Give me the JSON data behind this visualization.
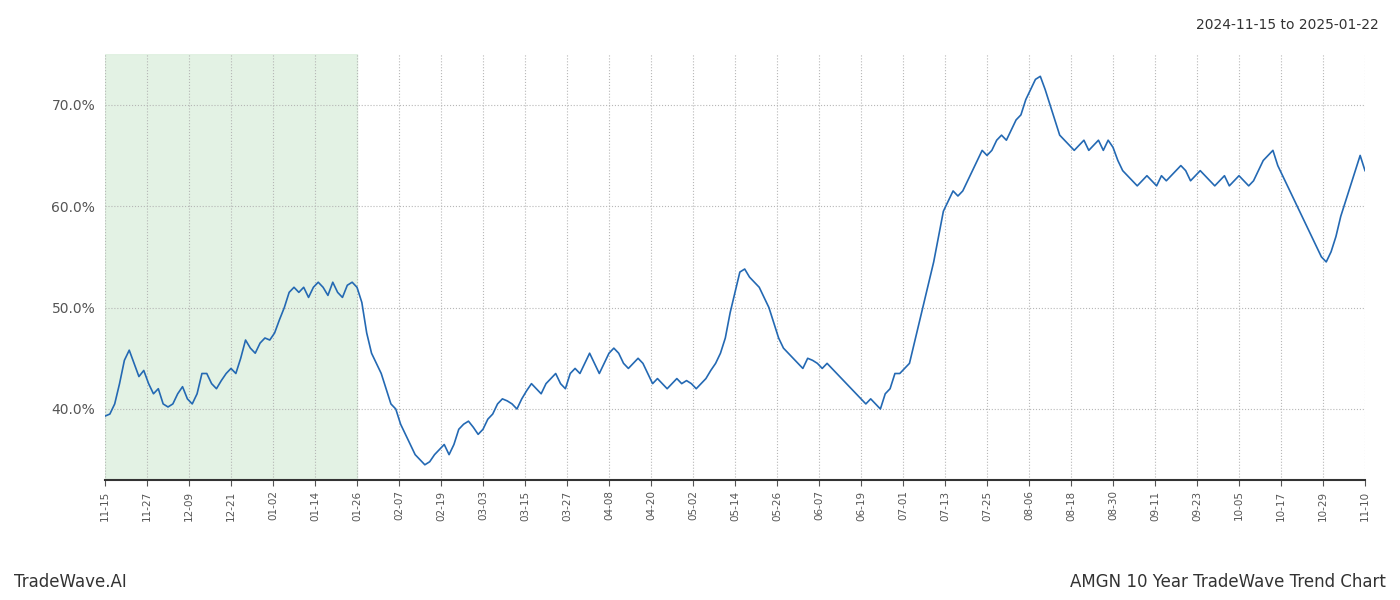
{
  "title_top_right": "2024-11-15 to 2025-01-22",
  "title_bottom_left": "TradeWave.AI",
  "title_bottom_right": "AMGN 10 Year TradeWave Trend Chart",
  "line_color": "#2469b3",
  "line_width": 1.2,
  "background_color": "#ffffff",
  "highlight_color": "#dff0e0",
  "highlight_alpha": 0.85,
  "ylim": [
    33,
    75
  ],
  "yticks": [
    40.0,
    50.0,
    60.0,
    70.0
  ],
  "ytick_labels": [
    "40.0%",
    "50.0%",
    "60.0%",
    "70.0%"
  ],
  "x_labels": [
    "11-15",
    "11-27",
    "12-09",
    "12-21",
    "01-02",
    "01-14",
    "01-26",
    "02-07",
    "02-19",
    "03-03",
    "03-15",
    "03-27",
    "04-08",
    "04-20",
    "05-02",
    "05-14",
    "05-26",
    "06-07",
    "06-19",
    "07-01",
    "07-13",
    "07-25",
    "08-06",
    "08-18",
    "08-30",
    "09-11",
    "09-23",
    "10-05",
    "10-17",
    "10-29",
    "11-10"
  ],
  "highlight_x_start_label": "11-15",
  "highlight_x_end_label": "01-26",
  "data": [
    [
      0,
      39.3
    ],
    [
      1,
      39.5
    ],
    [
      2,
      40.5
    ],
    [
      3,
      42.5
    ],
    [
      4,
      44.8
    ],
    [
      5,
      45.8
    ],
    [
      6,
      44.5
    ],
    [
      7,
      43.2
    ],
    [
      8,
      43.8
    ],
    [
      9,
      42.5
    ],
    [
      10,
      41.5
    ],
    [
      11,
      42.0
    ],
    [
      12,
      40.5
    ],
    [
      13,
      40.2
    ],
    [
      14,
      40.5
    ],
    [
      15,
      41.5
    ],
    [
      16,
      42.2
    ],
    [
      17,
      41.0
    ],
    [
      18,
      40.5
    ],
    [
      19,
      41.5
    ],
    [
      20,
      43.5
    ],
    [
      21,
      43.5
    ],
    [
      22,
      42.5
    ],
    [
      23,
      42.0
    ],
    [
      24,
      42.8
    ],
    [
      25,
      43.5
    ],
    [
      26,
      44.0
    ],
    [
      27,
      43.5
    ],
    [
      28,
      45.0
    ],
    [
      29,
      46.8
    ],
    [
      30,
      46.0
    ],
    [
      31,
      45.5
    ],
    [
      32,
      46.5
    ],
    [
      33,
      47.0
    ],
    [
      34,
      46.8
    ],
    [
      35,
      47.5
    ],
    [
      36,
      48.8
    ],
    [
      37,
      50.0
    ],
    [
      38,
      51.5
    ],
    [
      39,
      52.0
    ],
    [
      40,
      51.5
    ],
    [
      41,
      52.0
    ],
    [
      42,
      51.0
    ],
    [
      43,
      52.0
    ],
    [
      44,
      52.5
    ],
    [
      45,
      52.0
    ],
    [
      46,
      51.2
    ],
    [
      47,
      52.5
    ],
    [
      48,
      51.5
    ],
    [
      49,
      51.0
    ],
    [
      50,
      52.2
    ],
    [
      51,
      52.5
    ],
    [
      52,
      52.0
    ],
    [
      53,
      50.5
    ],
    [
      54,
      47.5
    ],
    [
      55,
      45.5
    ],
    [
      56,
      44.5
    ],
    [
      57,
      43.5
    ],
    [
      58,
      42.0
    ],
    [
      59,
      40.5
    ],
    [
      60,
      40.0
    ],
    [
      61,
      38.5
    ],
    [
      62,
      37.5
    ],
    [
      63,
      36.5
    ],
    [
      64,
      35.5
    ],
    [
      65,
      35.0
    ],
    [
      66,
      34.5
    ],
    [
      67,
      34.8
    ],
    [
      68,
      35.5
    ],
    [
      69,
      36.0
    ],
    [
      70,
      36.5
    ],
    [
      71,
      35.5
    ],
    [
      72,
      36.5
    ],
    [
      73,
      38.0
    ],
    [
      74,
      38.5
    ],
    [
      75,
      38.8
    ],
    [
      76,
      38.2
    ],
    [
      77,
      37.5
    ],
    [
      78,
      38.0
    ],
    [
      79,
      39.0
    ],
    [
      80,
      39.5
    ],
    [
      81,
      40.5
    ],
    [
      82,
      41.0
    ],
    [
      83,
      40.8
    ],
    [
      84,
      40.5
    ],
    [
      85,
      40.0
    ],
    [
      86,
      41.0
    ],
    [
      87,
      41.8
    ],
    [
      88,
      42.5
    ],
    [
      89,
      42.0
    ],
    [
      90,
      41.5
    ],
    [
      91,
      42.5
    ],
    [
      92,
      43.0
    ],
    [
      93,
      43.5
    ],
    [
      94,
      42.5
    ],
    [
      95,
      42.0
    ],
    [
      96,
      43.5
    ],
    [
      97,
      44.0
    ],
    [
      98,
      43.5
    ],
    [
      99,
      44.5
    ],
    [
      100,
      45.5
    ],
    [
      101,
      44.5
    ],
    [
      102,
      43.5
    ],
    [
      103,
      44.5
    ],
    [
      104,
      45.5
    ],
    [
      105,
      46.0
    ],
    [
      106,
      45.5
    ],
    [
      107,
      44.5
    ],
    [
      108,
      44.0
    ],
    [
      109,
      44.5
    ],
    [
      110,
      45.0
    ],
    [
      111,
      44.5
    ],
    [
      112,
      43.5
    ],
    [
      113,
      42.5
    ],
    [
      114,
      43.0
    ],
    [
      115,
      42.5
    ],
    [
      116,
      42.0
    ],
    [
      117,
      42.5
    ],
    [
      118,
      43.0
    ],
    [
      119,
      42.5
    ],
    [
      120,
      42.8
    ],
    [
      121,
      42.5
    ],
    [
      122,
      42.0
    ],
    [
      123,
      42.5
    ],
    [
      124,
      43.0
    ],
    [
      125,
      43.8
    ],
    [
      126,
      44.5
    ],
    [
      127,
      45.5
    ],
    [
      128,
      47.0
    ],
    [
      129,
      49.5
    ],
    [
      130,
      51.5
    ],
    [
      131,
      53.5
    ],
    [
      132,
      53.8
    ],
    [
      133,
      53.0
    ],
    [
      134,
      52.5
    ],
    [
      135,
      52.0
    ],
    [
      136,
      51.0
    ],
    [
      137,
      50.0
    ],
    [
      138,
      48.5
    ],
    [
      139,
      47.0
    ],
    [
      140,
      46.0
    ],
    [
      141,
      45.5
    ],
    [
      142,
      45.0
    ],
    [
      143,
      44.5
    ],
    [
      144,
      44.0
    ],
    [
      145,
      45.0
    ],
    [
      146,
      44.8
    ],
    [
      147,
      44.5
    ],
    [
      148,
      44.0
    ],
    [
      149,
      44.5
    ],
    [
      150,
      44.0
    ],
    [
      151,
      43.5
    ],
    [
      152,
      43.0
    ],
    [
      153,
      42.5
    ],
    [
      154,
      42.0
    ],
    [
      155,
      41.5
    ],
    [
      156,
      41.0
    ],
    [
      157,
      40.5
    ],
    [
      158,
      41.0
    ],
    [
      159,
      40.5
    ],
    [
      160,
      40.0
    ],
    [
      161,
      41.5
    ],
    [
      162,
      42.0
    ],
    [
      163,
      43.5
    ],
    [
      164,
      43.5
    ],
    [
      165,
      44.0
    ],
    [
      166,
      44.5
    ],
    [
      167,
      46.5
    ],
    [
      168,
      48.5
    ],
    [
      169,
      50.5
    ],
    [
      170,
      52.5
    ],
    [
      171,
      54.5
    ],
    [
      172,
      57.0
    ],
    [
      173,
      59.5
    ],
    [
      174,
      60.5
    ],
    [
      175,
      61.5
    ],
    [
      176,
      61.0
    ],
    [
      177,
      61.5
    ],
    [
      178,
      62.5
    ],
    [
      179,
      63.5
    ],
    [
      180,
      64.5
    ],
    [
      181,
      65.5
    ],
    [
      182,
      65.0
    ],
    [
      183,
      65.5
    ],
    [
      184,
      66.5
    ],
    [
      185,
      67.0
    ],
    [
      186,
      66.5
    ],
    [
      187,
      67.5
    ],
    [
      188,
      68.5
    ],
    [
      189,
      69.0
    ],
    [
      190,
      70.5
    ],
    [
      191,
      71.5
    ],
    [
      192,
      72.5
    ],
    [
      193,
      72.8
    ],
    [
      194,
      71.5
    ],
    [
      195,
      70.0
    ],
    [
      196,
      68.5
    ],
    [
      197,
      67.0
    ],
    [
      198,
      66.5
    ],
    [
      199,
      66.0
    ],
    [
      200,
      65.5
    ],
    [
      201,
      66.0
    ],
    [
      202,
      66.5
    ],
    [
      203,
      65.5
    ],
    [
      204,
      66.0
    ],
    [
      205,
      66.5
    ],
    [
      206,
      65.5
    ],
    [
      207,
      66.5
    ],
    [
      208,
      65.8
    ],
    [
      209,
      64.5
    ],
    [
      210,
      63.5
    ],
    [
      211,
      63.0
    ],
    [
      212,
      62.5
    ],
    [
      213,
      62.0
    ],
    [
      214,
      62.5
    ],
    [
      215,
      63.0
    ],
    [
      216,
      62.5
    ],
    [
      217,
      62.0
    ],
    [
      218,
      63.0
    ],
    [
      219,
      62.5
    ],
    [
      220,
      63.0
    ],
    [
      221,
      63.5
    ],
    [
      222,
      64.0
    ],
    [
      223,
      63.5
    ],
    [
      224,
      62.5
    ],
    [
      225,
      63.0
    ],
    [
      226,
      63.5
    ],
    [
      227,
      63.0
    ],
    [
      228,
      62.5
    ],
    [
      229,
      62.0
    ],
    [
      230,
      62.5
    ],
    [
      231,
      63.0
    ],
    [
      232,
      62.0
    ],
    [
      233,
      62.5
    ],
    [
      234,
      63.0
    ],
    [
      235,
      62.5
    ],
    [
      236,
      62.0
    ],
    [
      237,
      62.5
    ],
    [
      238,
      63.5
    ],
    [
      239,
      64.5
    ],
    [
      240,
      65.0
    ],
    [
      241,
      65.5
    ],
    [
      242,
      64.0
    ],
    [
      243,
      63.0
    ],
    [
      244,
      62.0
    ],
    [
      245,
      61.0
    ],
    [
      246,
      60.0
    ],
    [
      247,
      59.0
    ],
    [
      248,
      58.0
    ],
    [
      249,
      57.0
    ],
    [
      250,
      56.0
    ],
    [
      251,
      55.0
    ],
    [
      252,
      54.5
    ],
    [
      253,
      55.5
    ],
    [
      254,
      57.0
    ],
    [
      255,
      59.0
    ],
    [
      256,
      60.5
    ],
    [
      257,
      62.0
    ],
    [
      258,
      63.5
    ],
    [
      259,
      65.0
    ],
    [
      260,
      63.5
    ]
  ]
}
